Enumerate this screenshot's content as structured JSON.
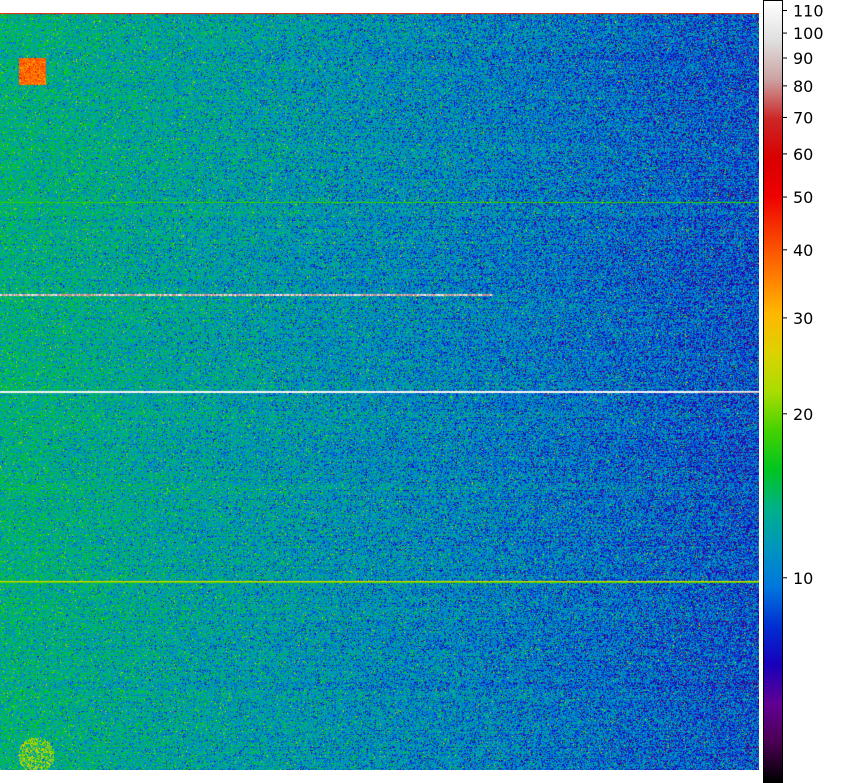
{
  "image": {
    "description_kind": "false-color detector intensity map",
    "colormap": "nipy_spectral",
    "scale": "log"
  },
  "colorbar": {
    "ticks": [
      {
        "value": 110,
        "label": "110"
      },
      {
        "value": 100,
        "label": "100"
      },
      {
        "value": 90,
        "label": "90"
      },
      {
        "value": 80,
        "label": "80"
      },
      {
        "value": 70,
        "label": "70"
      },
      {
        "value": 60,
        "label": "60"
      },
      {
        "value": 50,
        "label": "50"
      },
      {
        "value": 40,
        "label": "40"
      },
      {
        "value": 30,
        "label": "30"
      },
      {
        "value": 20,
        "label": "20"
      },
      {
        "value": 10,
        "label": "10"
      }
    ],
    "min": 4.2,
    "max": 115
  },
  "colors": {
    "stops": [
      "#000000",
      "#7a0088",
      "#0000c8",
      "#0077dd",
      "#00aaaa",
      "#00cc00",
      "#aadd00",
      "#ffcc00",
      "#ff6600",
      "#ee0000",
      "#cc0000",
      "#cccccc",
      "#ffffff"
    ]
  }
}
